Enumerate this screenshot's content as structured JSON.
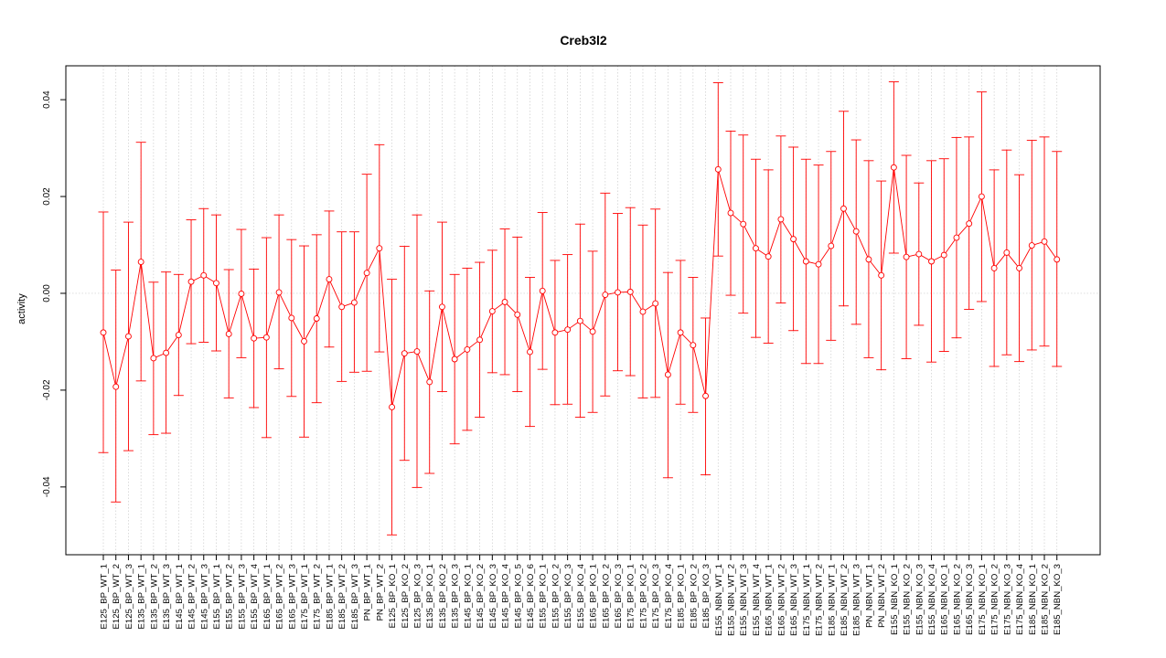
{
  "chart_data": {
    "type": "line",
    "title": "Creb3l2",
    "xlabel": "",
    "ylabel": "activity",
    "ylim": [
      -0.054,
      0.047
    ],
    "yticks": [
      -0.04,
      -0.02,
      0.0,
      0.02,
      0.04
    ],
    "ytick_labels": [
      "-0.04",
      "-0.02",
      "0.00",
      "0.02",
      "0.04"
    ],
    "grid": true,
    "color": "#ff0000",
    "grid_color": "#cccccc",
    "categories": [
      "E125_BP_WT_1",
      "E125_BP_WT_2",
      "E125_BP_WT_3",
      "E135_BP_WT_1",
      "E135_BP_WT_2",
      "E135_BP_WT_3",
      "E145_BP_WT_1",
      "E145_BP_WT_2",
      "E145_BP_WT_3",
      "E155_BP_WT_1",
      "E155_BP_WT_2",
      "E155_BP_WT_3",
      "E155_BP_WT_4",
      "E165_BP_WT_1",
      "E165_BP_WT_2",
      "E165_BP_WT_3",
      "E175_BP_WT_1",
      "E175_BP_WT_2",
      "E185_BP_WT_1",
      "E185_BP_WT_2",
      "E185_BP_WT_3",
      "PN_BP_WT_1",
      "PN_BP_WT_2",
      "E125_BP_KO_1",
      "E125_BP_KO_2",
      "E125_BP_KO_3",
      "E135_BP_KO_1",
      "E135_BP_KO_2",
      "E135_BP_KO_3",
      "E145_BP_KO_1",
      "E145_BP_KO_2",
      "E145_BP_KO_3",
      "E145_BP_KO_4",
      "E145_BP_KO_5",
      "E145_BP_KO_6",
      "E155_BP_KO_1",
      "E155_BP_KO_2",
      "E155_BP_KO_3",
      "E155_BP_KO_4",
      "E165_BP_KO_1",
      "E165_BP_KO_2",
      "E165_BP_KO_3",
      "E175_BP_KO_1",
      "E175_BP_KO_2",
      "E175_BP_KO_3",
      "E175_BP_KO_4",
      "E185_BP_KO_1",
      "E185_BP_KO_2",
      "E185_BP_KO_3",
      "E155_NBN_WT_1",
      "E155_NBN_WT_2",
      "E155_NBN_WT_3",
      "E155_NBN_WT_4",
      "E165_NBN_WT_1",
      "E165_NBN_WT_2",
      "E165_NBN_WT_3",
      "E175_NBN_WT_1",
      "E175_NBN_WT_2",
      "E185_NBN_WT_1",
      "E185_NBN_WT_2",
      "E185_NBN_WT_3",
      "PN_NBN_WT_1",
      "PN_NBN_WT_2",
      "E155_NBN_KO_1",
      "E155_NBN_KO_2",
      "E155_NBN_KO_3",
      "E155_NBN_KO_4",
      "E165_NBN_KO_1",
      "E165_NBN_KO_2",
      "E165_NBN_KO_3",
      "E175_NBN_KO_1",
      "E175_NBN_KO_2",
      "E175_NBN_KO_3",
      "E175_NBN_KO_4",
      "E185_NBN_KO_1",
      "E185_NBN_KO_2",
      "E185_NBN_KO_3"
    ],
    "values": [
      -0.0081,
      -0.0193,
      -0.0089,
      0.0065,
      -0.0134,
      -0.0123,
      -0.0086,
      0.0024,
      0.0037,
      0.0021,
      -0.0084,
      -0.0001,
      -0.0093,
      -0.0091,
      0.0002,
      -0.0051,
      -0.0099,
      -0.0052,
      0.0029,
      -0.0028,
      -0.0019,
      0.0042,
      0.0093,
      -0.0235,
      -0.0124,
      -0.012,
      -0.0183,
      -0.0028,
      -0.0136,
      -0.0116,
      -0.0096,
      -0.0037,
      -0.0018,
      -0.0044,
      -0.0121,
      0.0005,
      -0.0081,
      -0.0075,
      -0.0057,
      -0.0079,
      -0.0003,
      0.0002,
      0.0003,
      -0.0038,
      -0.0021,
      -0.0168,
      -0.0081,
      -0.0107,
      -0.0212,
      0.0256,
      0.0166,
      0.0143,
      0.0093,
      0.0076,
      0.0153,
      0.0112,
      0.0066,
      0.006,
      0.0098,
      0.0175,
      0.0128,
      0.007,
      0.0037,
      0.026,
      0.0075,
      0.0081,
      0.0066,
      0.0079,
      0.0115,
      0.0144,
      0.02,
      0.0052,
      0.0084,
      0.0052,
      0.0099,
      0.0107,
      0.007
    ],
    "upper": [
      0.0168,
      0.0048,
      0.0147,
      0.0312,
      0.0023,
      0.0044,
      0.0039,
      0.0152,
      0.0175,
      0.0162,
      0.0049,
      0.0132,
      0.005,
      0.0115,
      0.0162,
      0.0111,
      0.0098,
      0.0121,
      0.017,
      0.0127,
      0.0127,
      0.0246,
      0.0307,
      0.0029,
      0.0097,
      0.0162,
      0.0005,
      0.0147,
      0.0039,
      0.0052,
      0.0064,
      0.0089,
      0.0133,
      0.0116,
      0.0033,
      0.0167,
      0.0068,
      0.008,
      0.0143,
      0.0087,
      0.0207,
      0.0165,
      0.0177,
      0.0141,
      0.0174,
      0.0043,
      0.0068,
      0.0033,
      -0.0051,
      0.0435,
      0.0335,
      0.0327,
      0.0277,
      0.0255,
      0.0325,
      0.0302,
      0.0277,
      0.0265,
      0.0293,
      0.0376,
      0.0317,
      0.0274,
      0.0232,
      0.0437,
      0.0285,
      0.0228,
      0.0274,
      0.0278,
      0.0322,
      0.0323,
      0.0416,
      0.0255,
      0.0296,
      0.0245,
      0.0316,
      0.0323,
      0.0293
    ],
    "lower": [
      -0.0329,
      -0.0431,
      -0.0325,
      -0.0181,
      -0.0292,
      -0.0289,
      -0.0211,
      -0.0104,
      -0.0101,
      -0.0119,
      -0.0216,
      -0.0133,
      -0.0236,
      -0.0298,
      -0.0156,
      -0.0213,
      -0.0297,
      -0.0226,
      -0.0111,
      -0.0182,
      -0.0163,
      -0.0161,
      -0.0121,
      -0.0499,
      -0.0345,
      -0.0401,
      -0.0372,
      -0.0203,
      -0.0311,
      -0.0283,
      -0.0256,
      -0.0164,
      -0.0168,
      -0.0203,
      -0.0275,
      -0.0157,
      -0.023,
      -0.0229,
      -0.0256,
      -0.0246,
      -0.0212,
      -0.016,
      -0.017,
      -0.0216,
      -0.0215,
      -0.0381,
      -0.0229,
      -0.0246,
      -0.0375,
      0.0077,
      -0.0004,
      -0.0041,
      -0.0091,
      -0.0103,
      -0.002,
      -0.0077,
      -0.0145,
      -0.0145,
      -0.0097,
      -0.0026,
      -0.0064,
      -0.0133,
      -0.0158,
      0.0083,
      -0.0135,
      -0.0066,
      -0.0142,
      -0.012,
      -0.0092,
      -0.0033,
      -0.0017,
      -0.0151,
      -0.0127,
      -0.0141,
      -0.0117,
      -0.0109,
      -0.0151
    ]
  }
}
